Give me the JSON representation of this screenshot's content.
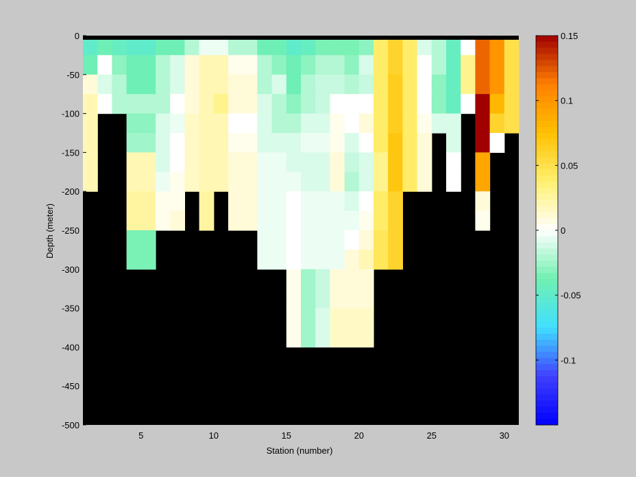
{
  "chart_data": {
    "type": "heatmap",
    "title": "",
    "xlabel": "Station (number)",
    "ylabel": "Depth (meter)",
    "xlim": [
      1,
      31
    ],
    "ylim": [
      -500,
      0
    ],
    "xticks": [
      5,
      10,
      15,
      20,
      25,
      30
    ],
    "yticks": [
      0,
      -50,
      -100,
      -150,
      -200,
      -250,
      -300,
      -350,
      -400,
      -450,
      -500
    ],
    "stations": [
      1,
      2,
      3,
      4,
      5,
      6,
      7,
      8,
      9,
      10,
      11,
      12,
      13,
      14,
      15,
      16,
      17,
      18,
      19,
      20,
      21,
      22,
      23,
      24,
      25,
      26,
      27,
      28,
      29,
      30
    ],
    "depth_levels": [
      0,
      -25,
      -50,
      -75,
      -100,
      -125,
      -150,
      -175,
      -200,
      -225,
      -250,
      -275,
      -300,
      -325,
      -350,
      -375,
      -400,
      -425,
      -450,
      -475
    ],
    "bottom_depth": [
      -200,
      -100,
      -100,
      -300,
      -300,
      -250,
      -250,
      -200,
      -250,
      -200,
      -250,
      -250,
      -300,
      -300,
      -400,
      -400,
      -400,
      -400,
      -400,
      -400,
      -300,
      -300,
      -200,
      -200,
      -150,
      -200,
      -150,
      -100,
      -250,
      -150
    ],
    "values": [
      [
        -0.05,
        -0.04,
        -0.045,
        -0.05,
        -0.05,
        -0.04,
        -0.04,
        -0.02,
        -0.005,
        -0.005,
        -0.02,
        -0.02,
        -0.04,
        -0.04,
        -0.05,
        -0.045,
        -0.035,
        -0.035,
        -0.035,
        -0.03,
        0.04,
        0.06,
        0.04,
        -0.01,
        -0.02,
        -0.045,
        0.0,
        0.12,
        0.1,
        0.05
      ],
      [
        -0.04,
        0.0,
        -0.03,
        -0.04,
        -0.04,
        -0.02,
        -0.01,
        0.01,
        0.02,
        0.02,
        0.005,
        0.005,
        -0.02,
        -0.03,
        -0.04,
        -0.03,
        -0.02,
        -0.02,
        -0.03,
        -0.01,
        0.04,
        0.06,
        0.04,
        0.0,
        -0.02,
        -0.045,
        0.03,
        0.12,
        0.1,
        0.05
      ],
      [
        0.01,
        -0.01,
        -0.02,
        -0.04,
        -0.04,
        -0.02,
        -0.01,
        0.01,
        0.02,
        0.02,
        0.01,
        0.01,
        -0.02,
        -0.01,
        -0.04,
        -0.02,
        -0.015,
        -0.015,
        -0.02,
        -0.015,
        0.04,
        0.065,
        0.04,
        0.0,
        -0.03,
        -0.045,
        0.03,
        0.12,
        0.1,
        0.05
      ],
      [
        0.02,
        0.0,
        -0.02,
        -0.02,
        -0.02,
        -0.02,
        0.0,
        0.01,
        0.02,
        0.03,
        0.01,
        0.01,
        -0.01,
        -0.02,
        -0.03,
        -0.02,
        -0.015,
        0.0,
        0.0,
        0.0,
        0.04,
        0.065,
        0.04,
        0.0,
        -0.03,
        -0.045,
        0.0,
        0.15,
        0.08,
        0.05
      ],
      [
        0.02,
        null,
        null,
        -0.03,
        -0.03,
        -0.01,
        -0.005,
        0.015,
        0.02,
        0.02,
        0.0,
        0.0,
        -0.01,
        -0.02,
        -0.02,
        -0.01,
        -0.01,
        0.005,
        0.0,
        0.01,
        0.04,
        0.065,
        0.04,
        0.005,
        -0.01,
        -0.01,
        null,
        0.15,
        0.06,
        0.05
      ],
      [
        0.02,
        null,
        null,
        -0.025,
        -0.025,
        -0.01,
        0.0,
        0.015,
        0.02,
        0.02,
        0.005,
        0.005,
        -0.01,
        -0.01,
        -0.01,
        -0.005,
        -0.005,
        0.005,
        -0.01,
        0.0,
        0.04,
        0.07,
        0.04,
        0.01,
        null,
        -0.01,
        null,
        0.15,
        0.0,
        null
      ],
      [
        0.02,
        null,
        null,
        0.02,
        0.02,
        -0.01,
        0.0,
        0.015,
        0.02,
        0.02,
        0.01,
        0.01,
        -0.005,
        -0.005,
        -0.01,
        -0.01,
        -0.01,
        0.01,
        -0.015,
        -0.01,
        0.03,
        0.07,
        0.04,
        0.01,
        null,
        0.0,
        null,
        0.09,
        null,
        null
      ],
      [
        0.02,
        null,
        null,
        0.02,
        0.02,
        -0.005,
        0.005,
        0.015,
        0.02,
        0.02,
        0.01,
        0.01,
        -0.005,
        -0.005,
        -0.005,
        -0.01,
        -0.01,
        0.01,
        -0.02,
        -0.01,
        0.03,
        0.07,
        0.04,
        0.01,
        null,
        0.0,
        null,
        0.09,
        null,
        null
      ],
      [
        null,
        null,
        null,
        0.025,
        0.025,
        0.005,
        0.005,
        null,
        0.025,
        null,
        0.01,
        0.01,
        -0.005,
        -0.005,
        0.0,
        -0.005,
        -0.005,
        -0.005,
        -0.01,
        0.0,
        0.04,
        0.06,
        null,
        null,
        null,
        null,
        null,
        0.01,
        null,
        null
      ],
      [
        null,
        null,
        null,
        0.025,
        0.025,
        0.005,
        0.01,
        null,
        0.025,
        null,
        0.01,
        0.01,
        -0.005,
        -0.005,
        0.0,
        -0.005,
        -0.005,
        -0.005,
        -0.005,
        0.005,
        0.04,
        0.06,
        null,
        null,
        null,
        null,
        null,
        0.005,
        null,
        null
      ],
      [
        null,
        null,
        null,
        -0.035,
        -0.035,
        null,
        null,
        null,
        null,
        null,
        null,
        null,
        -0.005,
        -0.005,
        0.0,
        -0.005,
        -0.005,
        -0.005,
        0.0,
        0.01,
        0.045,
        0.06,
        null,
        null,
        null,
        null,
        null,
        null,
        null,
        null
      ],
      [
        null,
        null,
        null,
        -0.035,
        -0.035,
        null,
        null,
        null,
        null,
        null,
        null,
        null,
        -0.005,
        -0.005,
        0.0,
        -0.005,
        -0.005,
        -0.005,
        0.01,
        0.02,
        0.045,
        0.06,
        null,
        null,
        null,
        null,
        null,
        null,
        null,
        null
      ],
      [
        null,
        null,
        null,
        null,
        null,
        null,
        null,
        null,
        null,
        null,
        null,
        null,
        null,
        null,
        0.005,
        -0.025,
        -0.015,
        0.01,
        0.01,
        0.01,
        null,
        null,
        null,
        null,
        null,
        null,
        null,
        null,
        null,
        null
      ],
      [
        null,
        null,
        null,
        null,
        null,
        null,
        null,
        null,
        null,
        null,
        null,
        null,
        null,
        null,
        0.005,
        -0.025,
        -0.015,
        0.01,
        0.01,
        0.01,
        null,
        null,
        null,
        null,
        null,
        null,
        null,
        null,
        null,
        null
      ],
      [
        null,
        null,
        null,
        null,
        null,
        null,
        null,
        null,
        null,
        null,
        null,
        null,
        null,
        null,
        0.005,
        -0.025,
        -0.01,
        0.015,
        0.015,
        0.015,
        null,
        null,
        null,
        null,
        null,
        null,
        null,
        null,
        null,
        null
      ],
      [
        null,
        null,
        null,
        null,
        null,
        null,
        null,
        null,
        null,
        null,
        null,
        null,
        null,
        null,
        0.005,
        -0.025,
        -0.01,
        0.015,
        0.015,
        0.015,
        null,
        null,
        null,
        null,
        null,
        null,
        null,
        null,
        null,
        null
      ],
      [
        null,
        null,
        null,
        null,
        null,
        null,
        null,
        null,
        null,
        null,
        null,
        null,
        null,
        null,
        null,
        null,
        null,
        null,
        null,
        null,
        null,
        null,
        null,
        null,
        null,
        null,
        null,
        null,
        null,
        null
      ],
      [
        null,
        null,
        null,
        null,
        null,
        null,
        null,
        null,
        null,
        null,
        null,
        null,
        null,
        null,
        null,
        null,
        null,
        null,
        null,
        null,
        null,
        null,
        null,
        null,
        null,
        null,
        null,
        null,
        null,
        null
      ],
      [
        null,
        null,
        null,
        null,
        null,
        null,
        null,
        null,
        null,
        null,
        null,
        null,
        null,
        null,
        null,
        null,
        null,
        null,
        null,
        null,
        null,
        null,
        null,
        null,
        null,
        null,
        null,
        null,
        null,
        null
      ],
      [
        null,
        null,
        null,
        null,
        null,
        null,
        null,
        null,
        null,
        null,
        null,
        null,
        null,
        null,
        null,
        null,
        null,
        null,
        null,
        null,
        null,
        null,
        null,
        null,
        null,
        null,
        null,
        null,
        null,
        null
      ]
    ],
    "colorbar": {
      "range": [
        -0.15,
        0.15
      ],
      "ticks": [
        0.15,
        0.1,
        0.05,
        0,
        -0.05,
        -0.1
      ],
      "tick_labels": [
        "0.15",
        "0.1",
        "0.05",
        "0",
        "-0.05",
        "-0.1"
      ],
      "colormap": "blue-cyan-green-white-yellow-orange-red",
      "stops": [
        "#0000ff",
        "#4040ff",
        "#40e0ff",
        "#70f0b0",
        "#ffffff",
        "#fff070",
        "#ffc000",
        "#ff8000",
        "#a00000"
      ]
    },
    "land_color": "#000000",
    "background_color": "#c8c8c8",
    "grid": false,
    "legend": "colorbar-right"
  }
}
